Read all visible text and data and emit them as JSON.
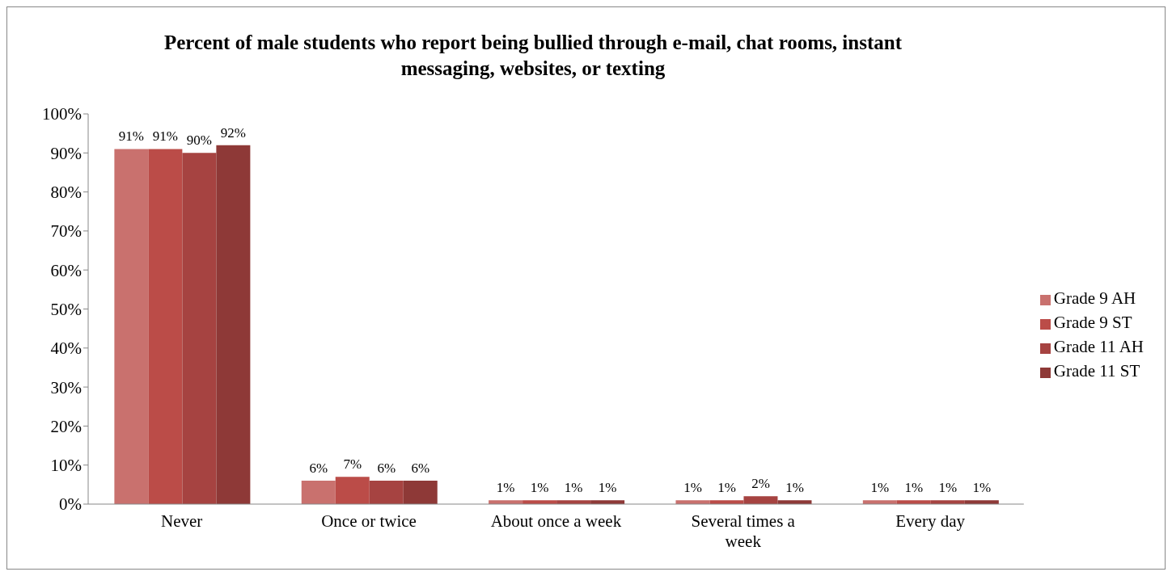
{
  "chart_data": {
    "type": "bar",
    "title": "Percent of male students who report being bullied through e-mail, chat rooms, instant messaging, websites, or texting",
    "categories": [
      "Never",
      "Once or twice",
      "About once a week",
      "Several times a week",
      "Every day"
    ],
    "series": [
      {
        "name": "Grade 9 AH",
        "color": "#c9716e",
        "values": [
          91,
          6,
          1,
          1,
          1
        ],
        "value_labels": [
          "91%",
          "6%",
          "1%",
          "1%",
          "1%"
        ]
      },
      {
        "name": "Grade 9 ST",
        "color": "#bb4c48",
        "values": [
          91,
          7,
          1,
          1,
          1
        ],
        "value_labels": [
          "91%",
          "7%",
          "1%",
          "1%",
          "1%"
        ]
      },
      {
        "name": "Grade 11 AH",
        "color": "#a64341",
        "values": [
          90,
          6,
          1,
          2,
          1
        ],
        "value_labels": [
          "90%",
          "6%",
          "1%",
          "2%",
          "1%"
        ]
      },
      {
        "name": "Grade 11 ST",
        "color": "#8e3937",
        "values": [
          92,
          6,
          1,
          1,
          1
        ],
        "value_labels": [
          "92%",
          "6%",
          "1%",
          "1%",
          "1%"
        ]
      }
    ],
    "ylim": [
      0,
      100
    ],
    "yticks": [
      {
        "value": 0,
        "label": "0%"
      },
      {
        "value": 10,
        "label": "10%"
      },
      {
        "value": 20,
        "label": "20%"
      },
      {
        "value": 30,
        "label": "30%"
      },
      {
        "value": 40,
        "label": "40%"
      },
      {
        "value": 50,
        "label": "50%"
      },
      {
        "value": 60,
        "label": "60%"
      },
      {
        "value": 70,
        "label": "70%"
      },
      {
        "value": 80,
        "label": "80%"
      },
      {
        "value": 90,
        "label": "90%"
      },
      {
        "value": 100,
        "label": "100%"
      }
    ],
    "grid": false,
    "legend": "right"
  }
}
